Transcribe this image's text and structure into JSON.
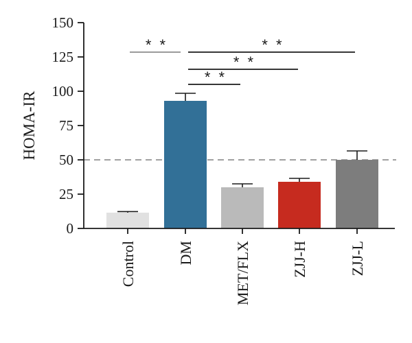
{
  "chart_data": {
    "type": "bar",
    "ylabel": "HOMA-IR",
    "ylim": [
      0,
      150
    ],
    "yticks": [
      0,
      25,
      50,
      75,
      100,
      125,
      150
    ],
    "categories": [
      "Control",
      "DM",
      "MET/FLX",
      "ZJJ-H",
      "ZJJ-L"
    ],
    "values": [
      11.5,
      93,
      30,
      34,
      50
    ],
    "errors": [
      0.8,
      5.5,
      2.5,
      2.5,
      6.5
    ],
    "colors": [
      "#e1e1e1",
      "#327097",
      "#bababa",
      "#c62b1f",
      "#7d7d7d"
    ],
    "reference_line": {
      "y": 50,
      "style": "dashed",
      "color": "#808080"
    },
    "significance": [
      {
        "from": "Control",
        "to": "DM",
        "label": "* *",
        "color": "#8c8c8c"
      },
      {
        "from": "DM",
        "to": "MET/FLX",
        "label": "* *",
        "color": "#1a1a1a"
      },
      {
        "from": "DM",
        "to": "ZJJ-H",
        "label": "* *",
        "color": "#1a1a1a"
      },
      {
        "from": "DM",
        "to": "ZJJ-L",
        "label": "* *",
        "color": "#1a1a1a"
      }
    ],
    "grid": false,
    "legend": "none"
  }
}
